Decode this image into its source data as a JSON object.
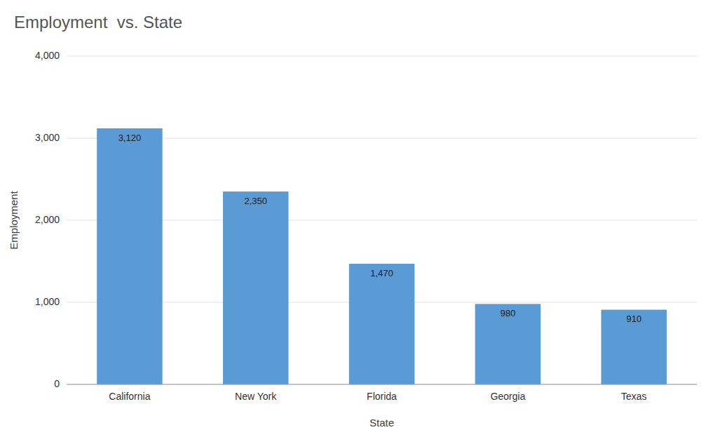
{
  "chart_data": {
    "type": "bar",
    "title": "Employment  vs. State",
    "xlabel": "State",
    "ylabel": "Employment",
    "categories": [
      "California",
      "New York",
      "Florida",
      "Georgia",
      "Texas"
    ],
    "values": [
      3120,
      2350,
      1470,
      980,
      910
    ],
    "value_labels": [
      "3,120",
      "2,350",
      "1,470",
      "980",
      "910"
    ],
    "data_labels": true,
    "color": "#5B9BD5",
    "ylim": [
      0,
      4000
    ],
    "yticks": [
      0,
      {
        "value": 1000,
        "label": "1,000"
      },
      {
        "value": 2000,
        "label": "2,000"
      },
      {
        "value": 3000,
        "label": "3,000"
      },
      {
        "value": 4000,
        "label": "4,000"
      }
    ],
    "grid": true
  }
}
